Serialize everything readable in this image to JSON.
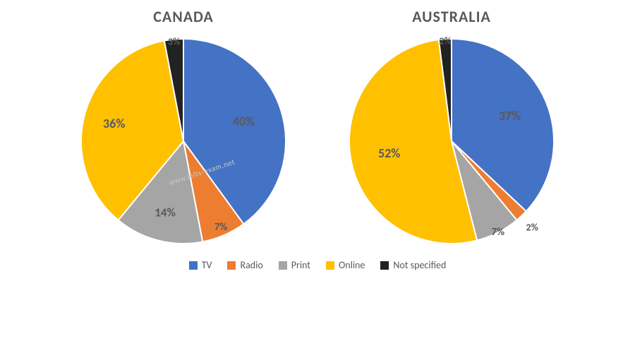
{
  "background_color": "#ffffff",
  "title_fontsize": 22,
  "title_color": "#595959",
  "label_color": "#595959",
  "pie_radius": 145,
  "start_angle_deg": -90,
  "stroke_color": "#ffffff",
  "stroke_width": 2,
  "series": [
    {
      "key": "tv",
      "name": "TV",
      "color": "#4472c4"
    },
    {
      "key": "radio",
      "name": "Radio",
      "color": "#ed7d31"
    },
    {
      "key": "print",
      "name": "Print",
      "color": "#a5a5a5"
    },
    {
      "key": "online",
      "name": "Online",
      "color": "#ffc000"
    },
    {
      "key": "not_specified",
      "name": "Not specified",
      "color": "#222222"
    }
  ],
  "charts": [
    {
      "id": "canada",
      "title": "CANADA",
      "data": {
        "tv": 40,
        "radio": 7,
        "print": 14,
        "online": 36,
        "not_specified": 3
      },
      "label_radius_pct": {
        "tv": 0.62,
        "radio": 0.92,
        "print": 0.72,
        "online": 0.7,
        "not_specified": 0.98
      },
      "label_fontsize": {
        "tv": 18,
        "radio": 15,
        "print": 17,
        "online": 18,
        "not_specified": 14
      }
    },
    {
      "id": "australia",
      "title": "AUSTRALIA",
      "data": {
        "tv": 37,
        "radio": 2,
        "print": 7,
        "online": 52,
        "not_specified": 2
      },
      "label_radius_pct": {
        "tv": 0.62,
        "radio": 1.15,
        "print": 1.0,
        "online": 0.62,
        "not_specified": 0.98
      },
      "label_fontsize": {
        "tv": 18,
        "radio": 14,
        "print": 15,
        "online": 18,
        "not_specified": 14
      }
    }
  ],
  "legend": {
    "swatch_size": 12,
    "fontsize": 14,
    "text_color": "#595959"
  },
  "watermark": {
    "text": "www.ielts-exam.net",
    "color": "#c8c8c8",
    "fontsize": 11
  }
}
